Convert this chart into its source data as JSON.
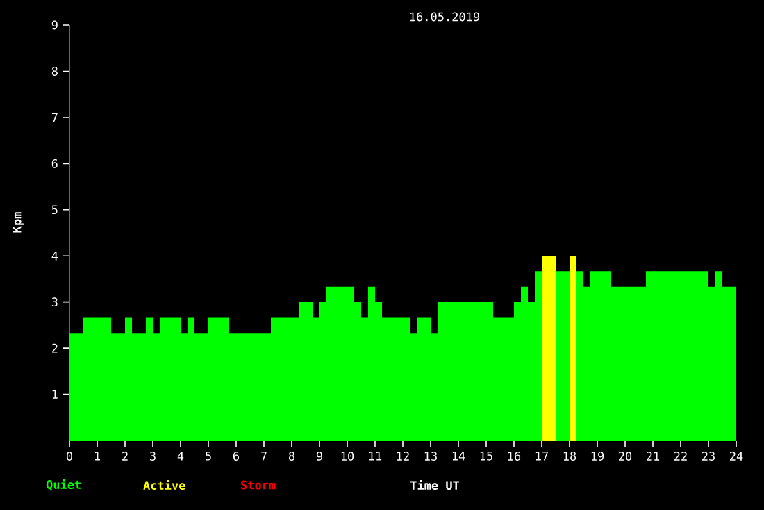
{
  "chart_data": {
    "type": "bar",
    "title": "16.05.2019",
    "xlabel": "Time UT",
    "ylabel": "Kpm",
    "legend": "bottom",
    "x": [
      0.125,
      0.375,
      0.625,
      0.875,
      1.125,
      1.375,
      1.625,
      1.875,
      2.125,
      2.375,
      2.625,
      2.875,
      3.125,
      3.375,
      3.625,
      3.875,
      4.125,
      4.375,
      4.625,
      4.875,
      5.125,
      5.375,
      5.625,
      5.875,
      6.125,
      6.375,
      6.625,
      6.875,
      7.125,
      7.375,
      7.625,
      7.875,
      8.125,
      8.375,
      8.625,
      8.875,
      9.125,
      9.375,
      9.625,
      9.875,
      10.125,
      10.375,
      10.625,
      10.875,
      11.125,
      11.375,
      11.625,
      11.875,
      12.125,
      12.375,
      12.625,
      12.875,
      13.125,
      13.375,
      13.625,
      13.875,
      14.125,
      14.375,
      14.625,
      14.875,
      15.125,
      15.375,
      15.625,
      15.875,
      16.125,
      16.375,
      16.625,
      16.875,
      17.125,
      17.375,
      17.625,
      17.875,
      18.125,
      18.375,
      18.625,
      18.875,
      19.125,
      19.375,
      19.625,
      19.875,
      20.125,
      20.375,
      20.625,
      20.875,
      21.125,
      21.375,
      21.625,
      21.875,
      22.125,
      22.375,
      22.625,
      22.875,
      23.125,
      23.375,
      23.625,
      23.875
    ],
    "series": [
      {
        "name": "Quiet",
        "color": "#00ff00",
        "values": [
          2.33,
          2.33,
          2.67,
          2.67,
          2.67,
          2.67,
          2.33,
          2.33,
          2.67,
          2.33,
          2.33,
          2.67,
          2.33,
          2.67,
          2.67,
          2.67,
          2.33,
          2.67,
          2.33,
          2.33,
          2.67,
          2.67,
          2.67,
          2.33,
          2.33,
          2.33,
          2.33,
          2.33,
          2.33,
          2.67,
          2.67,
          2.67,
          2.67,
          3.0,
          3.0,
          2.67,
          3.0,
          3.33,
          3.33,
          3.33,
          3.33,
          3.0,
          2.67,
          3.33,
          3.0,
          2.67,
          2.67,
          2.67,
          2.67,
          2.33,
          2.67,
          2.67,
          2.33,
          3.0,
          3.0,
          3.0,
          3.0,
          3.0,
          3.0,
          3.0,
          3.0,
          2.67,
          2.67,
          2.67,
          3.0,
          3.33,
          3.0,
          3.67,
          null,
          null,
          3.67,
          3.67,
          null,
          3.67,
          3.33,
          3.67,
          3.67,
          3.67,
          3.33,
          3.33,
          3.33,
          3.33,
          3.33,
          3.67,
          3.67,
          3.67,
          3.67,
          3.67,
          3.67,
          3.67,
          3.67,
          3.67,
          3.33,
          3.67,
          3.33,
          3.33
        ]
      },
      {
        "name": "Active",
        "color": "#ffff00",
        "values": [
          null,
          null,
          null,
          null,
          null,
          null,
          null,
          null,
          null,
          null,
          null,
          null,
          null,
          null,
          null,
          null,
          null,
          null,
          null,
          null,
          null,
          null,
          null,
          null,
          null,
          null,
          null,
          null,
          null,
          null,
          null,
          null,
          null,
          null,
          null,
          null,
          null,
          null,
          null,
          null,
          null,
          null,
          null,
          null,
          null,
          null,
          null,
          null,
          null,
          null,
          null,
          null,
          null,
          null,
          null,
          null,
          null,
          null,
          null,
          null,
          null,
          null,
          null,
          null,
          null,
          null,
          null,
          null,
          4.0,
          4.0,
          null,
          null,
          4.0,
          null,
          null,
          null,
          null,
          null,
          null,
          null,
          null,
          null,
          null,
          null,
          null,
          null,
          null,
          null,
          null,
          null,
          null,
          null,
          null,
          null,
          null,
          null
        ]
      },
      {
        "name": "Storm",
        "color": "#ff0000",
        "values": [
          null,
          null,
          null,
          null,
          null,
          null,
          null,
          null,
          null,
          null,
          null,
          null,
          null,
          null,
          null,
          null,
          null,
          null,
          null,
          null,
          null,
          null,
          null,
          null,
          null,
          null,
          null,
          null,
          null,
          null,
          null,
          null,
          null,
          null,
          null,
          null,
          null,
          null,
          null,
          null,
          null,
          null,
          null,
          null,
          null,
          null,
          null,
          null,
          null,
          null,
          null,
          null,
          null,
          null,
          null,
          null,
          null,
          null,
          null,
          null,
          null,
          null,
          null,
          null,
          null,
          null,
          null,
          null,
          null,
          null,
          null,
          null,
          null,
          null,
          null,
          null,
          null,
          null,
          null,
          null,
          null,
          null,
          null,
          null,
          null,
          null,
          null,
          null,
          null,
          null,
          null,
          null,
          null,
          null,
          null,
          null
        ]
      }
    ],
    "xlim": [
      0,
      24
    ],
    "xticks": [
      0,
      1,
      2,
      3,
      4,
      5,
      6,
      7,
      8,
      9,
      10,
      11,
      12,
      13,
      14,
      15,
      16,
      17,
      18,
      19,
      20,
      21,
      22,
      23,
      24
    ],
    "ylim": [
      0,
      9
    ],
    "yticks": [
      1,
      2,
      3,
      4,
      5,
      6,
      7,
      8,
      9
    ]
  }
}
